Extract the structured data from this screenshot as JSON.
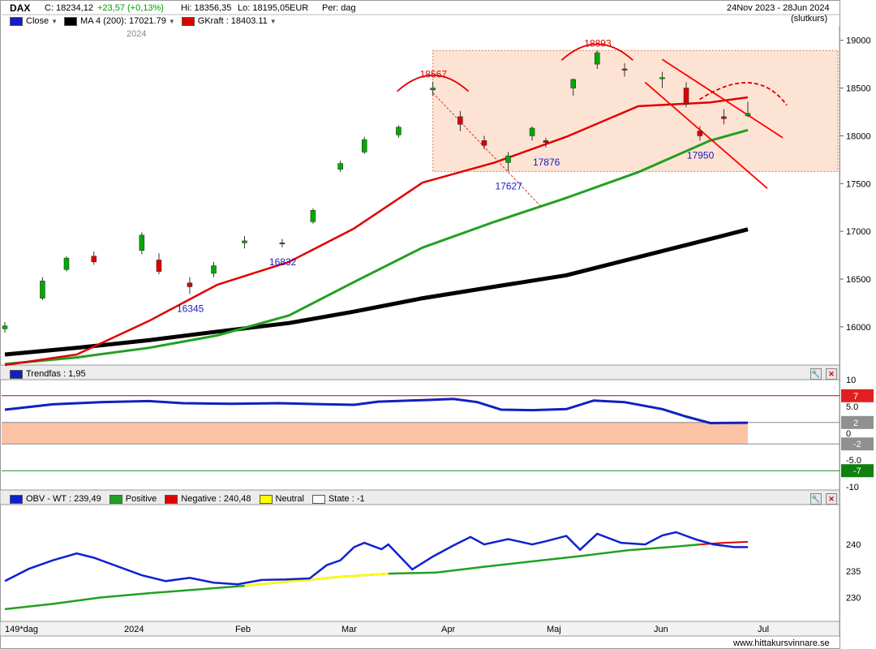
{
  "header": {
    "symbol": "DAX",
    "close_label": "C: 18234,12",
    "change_label": "+23,57 (+0,13%)",
    "hi_label": "Hi: 18356,35",
    "lo_label": "Lo: 18195,05",
    "currency": "EUR",
    "period_label": "Per: dag",
    "date_range": "24Nov 2023 - 28Jun 2024",
    "price_type": "(slutkurs)",
    "year_label": "2024"
  },
  "legend": {
    "close": "Close",
    "ma200": "MA 4 (200): 17021.79",
    "gkraft": "GKraft : 18403.11"
  },
  "trendfas_label": "Trendfas : 1,95",
  "obv_legend": {
    "obv": "OBV - WT : 239,49",
    "positive": "Positive",
    "negative": "Negative : 240,48",
    "neutral": "Neutral",
    "state": "State : -1"
  },
  "footer": {
    "period": "149*dag",
    "months": [
      "2024",
      "Feb",
      "Mar",
      "Apr",
      "Maj",
      "Jun",
      "Jul"
    ],
    "watermark": "www.hittakursvinnare.se"
  },
  "colors": {
    "up": "#00aa00",
    "down": "#dd0000",
    "ma_short": "#1a1aff",
    "ma_mid": "#e00000",
    "ma_long": "#22a022",
    "ma_200": "#000000",
    "zone": "#fde3d3",
    "trendfas": "#1020c0",
    "obv": "#1020d0",
    "obv_pos": "#22a022",
    "obv_neg": "#e00000",
    "obv_neutral": "#ffff00"
  },
  "chart_data": [
    {
      "type": "candlestick",
      "title": "DAX",
      "ylim": [
        15600,
        19150
      ],
      "y_ticks": [
        16000,
        16500,
        17000,
        17500,
        18000,
        18500,
        19000
      ],
      "x_range": [
        "2023-11-24",
        "2024-06-28"
      ],
      "annotations": [
        {
          "text": "18567",
          "date": "2024-03-28",
          "value": 18567,
          "color": "#e00000"
        },
        {
          "text": "18893",
          "date": "2024-05-15",
          "value": 18893,
          "color": "#e00000"
        },
        {
          "text": "16345",
          "date": "2024-01-17",
          "value": 16345,
          "color": "#1a1ac0"
        },
        {
          "text": "16832",
          "date": "2024-02-13",
          "value": 16832,
          "color": "#1a1ac0"
        },
        {
          "text": "17627",
          "date": "2024-04-19",
          "value": 17627,
          "color": "#1a1ac0"
        },
        {
          "text": "17876",
          "date": "2024-04-30",
          "value": 17876,
          "color": "#1a1ac0"
        },
        {
          "text": "17950",
          "date": "2024-06-14",
          "value": 17950,
          "color": "#1a1ac0"
        }
      ],
      "zone": {
        "from": "2024-03-28",
        "to": "2024-06-28",
        "low": 17627,
        "high": 18893
      },
      "series": [
        {
          "name": "MA 4 (200)",
          "style": "thick-black",
          "points": [
            [
              "2023-11-24",
              15710
            ],
            [
              "2023-12-15",
              15780
            ],
            [
              "2024-01-05",
              15860
            ],
            [
              "2024-01-25",
              15950
            ],
            [
              "2024-02-15",
              16040
            ],
            [
              "2024-03-05",
              16160
            ],
            [
              "2024-03-25",
              16300
            ],
            [
              "2024-04-15",
              16420
            ],
            [
              "2024-05-06",
              16540
            ],
            [
              "2024-05-27",
              16730
            ],
            [
              "2024-06-17",
              16920
            ],
            [
              "2024-06-28",
              17021
            ]
          ]
        },
        {
          "name": "long-MA",
          "style": "green",
          "points": [
            [
              "2023-11-24",
              15610
            ],
            [
              "2023-12-15",
              15680
            ],
            [
              "2024-01-05",
              15780
            ],
            [
              "2024-01-25",
              15910
            ],
            [
              "2024-02-15",
              16120
            ],
            [
              "2024-03-05",
              16470
            ],
            [
              "2024-03-25",
              16830
            ],
            [
              "2024-04-15",
              17100
            ],
            [
              "2024-05-06",
              17350
            ],
            [
              "2024-05-27",
              17620
            ],
            [
              "2024-06-17",
              17950
            ],
            [
              "2024-06-28",
              18060
            ]
          ]
        },
        {
          "name": "GKraft",
          "style": "red",
          "points": [
            [
              "2023-11-24",
              15600
            ],
            [
              "2023-12-15",
              15710
            ],
            [
              "2024-01-05",
              16060
            ],
            [
              "2024-01-25",
              16440
            ],
            [
              "2024-02-15",
              16680
            ],
            [
              "2024-03-05",
              17030
            ],
            [
              "2024-03-25",
              17510
            ],
            [
              "2024-04-15",
              17720
            ],
            [
              "2024-05-06",
              17990
            ],
            [
              "2024-05-27",
              18310
            ],
            [
              "2024-06-17",
              18350
            ],
            [
              "2024-06-28",
              18403
            ]
          ]
        }
      ],
      "candles": [
        [
          "2023-11-24",
          15980,
          16050,
          15940,
          16010
        ],
        [
          "2023-12-05",
          16300,
          16520,
          16280,
          16480
        ],
        [
          "2023-12-12",
          16600,
          16740,
          16580,
          16720
        ],
        [
          "2023-12-20",
          16740,
          16790,
          16650,
          16680
        ],
        [
          "2024-01-03",
          16800,
          16990,
          16760,
          16960
        ],
        [
          "2024-01-08",
          16700,
          16770,
          16550,
          16580
        ],
        [
          "2024-01-17",
          16460,
          16520,
          16345,
          16420
        ],
        [
          "2024-01-24",
          16560,
          16680,
          16520,
          16640
        ],
        [
          "2024-02-02",
          16880,
          16950,
          16820,
          16900
        ],
        [
          "2024-02-13",
          16870,
          16920,
          16832,
          16880
        ],
        [
          "2024-02-22",
          17100,
          17240,
          17080,
          17220
        ],
        [
          "2024-03-01",
          17650,
          17740,
          17620,
          17710
        ],
        [
          "2024-03-08",
          17830,
          17990,
          17810,
          17960
        ],
        [
          "2024-03-18",
          18010,
          18110,
          17980,
          18090
        ],
        [
          "2024-03-28",
          18480,
          18567,
          18420,
          18500
        ],
        [
          "2024-04-05",
          18200,
          18260,
          18050,
          18120
        ],
        [
          "2024-04-12",
          17950,
          18000,
          17860,
          17900
        ],
        [
          "2024-04-19",
          17720,
          17830,
          17627,
          17790
        ],
        [
          "2024-04-26",
          18000,
          18100,
          17950,
          18080
        ],
        [
          "2024-04-30",
          17950,
          17980,
          17876,
          17930
        ],
        [
          "2024-05-08",
          18500,
          18600,
          18420,
          18590
        ],
        [
          "2024-05-15",
          18750,
          18893,
          18700,
          18870
        ],
        [
          "2024-05-23",
          18700,
          18760,
          18620,
          18690
        ],
        [
          "2024-06-03",
          18600,
          18670,
          18500,
          18610
        ],
        [
          "2024-06-10",
          18500,
          18560,
          18300,
          18330
        ],
        [
          "2024-06-14",
          18050,
          18100,
          17950,
          18000
        ],
        [
          "2024-06-21",
          18200,
          18280,
          18120,
          18180
        ],
        [
          "2024-06-28",
          18210,
          18356,
          18195,
          18234
        ]
      ]
    },
    {
      "type": "line",
      "title": "Trendfas : 1,95",
      "ylim": [
        -10,
        10
      ],
      "y_ticks": [
        10,
        5,
        0,
        -5,
        -10
      ],
      "levels": [
        7,
        2,
        -2,
        -7
      ],
      "series": [
        {
          "name": "Trendfas",
          "points": [
            [
              "2023-11-24",
              4.4
            ],
            [
              "2023-12-08",
              5.4
            ],
            [
              "2023-12-22",
              5.8
            ],
            [
              "2024-01-05",
              6.0
            ],
            [
              "2024-01-15",
              5.6
            ],
            [
              "2024-01-29",
              5.5
            ],
            [
              "2024-02-12",
              5.6
            ],
            [
              "2024-02-26",
              5.4
            ],
            [
              "2024-03-05",
              5.3
            ],
            [
              "2024-03-12",
              5.9
            ],
            [
              "2024-03-26",
              6.2
            ],
            [
              "2024-04-03",
              6.4
            ],
            [
              "2024-04-10",
              5.8
            ],
            [
              "2024-04-17",
              4.4
            ],
            [
              "2024-04-26",
              4.3
            ],
            [
              "2024-05-06",
              4.5
            ],
            [
              "2024-05-14",
              6.1
            ],
            [
              "2024-05-23",
              5.8
            ],
            [
              "2024-06-03",
              4.5
            ],
            [
              "2024-06-10",
              3.1
            ],
            [
              "2024-06-17",
              1.9
            ],
            [
              "2024-06-28",
              1.95
            ]
          ]
        }
      ]
    },
    {
      "type": "line",
      "title": "OBV - WT : 239,49",
      "ylim": [
        225.5,
        247.5
      ],
      "y_ticks": [
        230,
        235,
        240
      ],
      "series": [
        {
          "name": "OBV - WT",
          "points": [
            [
              "2023-11-24",
              233.1
            ],
            [
              "2023-12-01",
              235.4
            ],
            [
              "2023-12-08",
              237.0
            ],
            [
              "2023-12-15",
              238.3
            ],
            [
              "2023-12-20",
              237.5
            ],
            [
              "2024-01-03",
              234.2
            ],
            [
              "2024-01-10",
              233.1
            ],
            [
              "2024-01-17",
              233.7
            ],
            [
              "2024-01-24",
              232.8
            ],
            [
              "2024-01-31",
              232.5
            ],
            [
              "2024-02-07",
              233.3
            ],
            [
              "2024-02-14",
              233.4
            ],
            [
              "2024-02-21",
              233.6
            ],
            [
              "2024-02-26",
              236.1
            ],
            [
              "2024-03-01",
              237.0
            ],
            [
              "2024-03-05",
              239.5
            ],
            [
              "2024-03-08",
              240.3
            ],
            [
              "2024-03-13",
              239.1
            ],
            [
              "2024-03-15",
              240.0
            ],
            [
              "2024-03-22",
              235.3
            ],
            [
              "2024-03-28",
              237.7
            ],
            [
              "2024-04-03",
              239.8
            ],
            [
              "2024-04-08",
              241.4
            ],
            [
              "2024-04-12",
              240.0
            ],
            [
              "2024-04-19",
              241.0
            ],
            [
              "2024-04-26",
              240.0
            ],
            [
              "2024-04-30",
              240.6
            ],
            [
              "2024-05-06",
              241.6
            ],
            [
              "2024-05-10",
              239.0
            ],
            [
              "2024-05-15",
              242.0
            ],
            [
              "2024-05-22",
              240.3
            ],
            [
              "2024-05-29",
              240.0
            ],
            [
              "2024-06-03",
              241.7
            ],
            [
              "2024-06-07",
              242.3
            ],
            [
              "2024-06-13",
              240.9
            ],
            [
              "2024-06-18",
              240.0
            ],
            [
              "2024-06-24",
              239.5
            ],
            [
              "2024-06-28",
              239.49
            ]
          ]
        },
        {
          "name": "Positive",
          "points": [
            [
              "2023-11-24",
              227.8
            ],
            [
              "2023-12-08",
              228.8
            ],
            [
              "2023-12-22",
              230.0
            ],
            [
              "2024-01-05",
              230.8
            ],
            [
              "2024-01-19",
              231.5
            ],
            [
              "2024-02-02",
              232.2
            ],
            [
              "2024-02-16",
              233.1
            ],
            [
              "2024-03-01",
              233.9
            ],
            [
              "2024-03-15",
              234.5
            ],
            [
              "2024-03-29",
              234.7
            ],
            [
              "2024-04-12",
              235.8
            ],
            [
              "2024-04-26",
              236.8
            ],
            [
              "2024-05-10",
              237.8
            ],
            [
              "2024-05-24",
              238.9
            ],
            [
              "2024-06-07",
              239.6
            ],
            [
              "2024-06-14",
              240.0
            ]
          ]
        },
        {
          "name": "Negative : 240,48",
          "points": [
            [
              "2024-06-14",
              240.0
            ],
            [
              "2024-06-21",
              240.3
            ],
            [
              "2024-06-28",
              240.48
            ]
          ]
        }
      ]
    }
  ]
}
